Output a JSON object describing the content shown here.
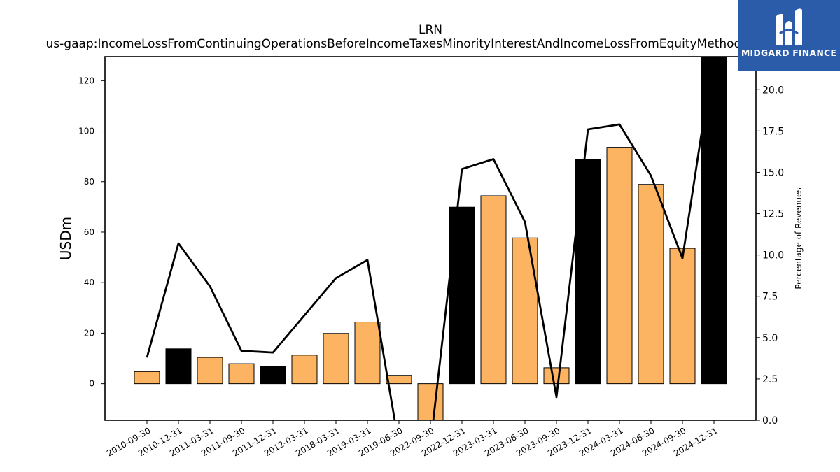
{
  "chart_data": {
    "type": "bar",
    "title": "LRN",
    "subtitle": "us-gaap:IncomeLossFromContinuingOperationsBeforeIncomeTaxesMinorityInterestAndIncomeLossFromEquityMethodInvestments",
    "ylabel": "USDm",
    "y2label": "Percentage of Revenues",
    "categories": [
      "2010-09-30",
      "2010-12-31",
      "2011-03-31",
      "2011-09-30",
      "2011-12-31",
      "2012-03-31",
      "2018-03-31",
      "2019-03-31",
      "2019-06-30",
      "2022-09-30",
      "2022-12-31",
      "2023-03-31",
      "2023-06-30",
      "2023-09-30",
      "2023-12-31",
      "2024-03-31",
      "2024-06-30",
      "2024-09-30",
      "2024-12-31"
    ],
    "series": [
      {
        "type": "bar",
        "axis": "left",
        "values": [
          4.8,
          13.8,
          10.4,
          7.9,
          6.8,
          11.3,
          19.9,
          24.4,
          3.3,
          -16.0,
          69.9,
          74.4,
          57.7,
          6.3,
          88.8,
          93.6,
          78.9,
          53.6,
          131.0
        ],
        "colors": [
          "#fdb462",
          "#000000",
          "#fdb462",
          "#fdb462",
          "#000000",
          "#fdb462",
          "#fdb462",
          "#fdb462",
          "#fdb462",
          "#fdb462",
          "#000000",
          "#fdb462",
          "#fdb462",
          "#fdb462",
          "#000000",
          "#fdb462",
          "#fdb462",
          "#fdb462",
          "#000000"
        ]
      },
      {
        "type": "line",
        "axis": "right",
        "color": "#000000",
        "values": [
          3.8,
          10.7,
          8.1,
          4.2,
          4.1,
          null,
          8.6,
          9.7,
          -1.5,
          -1.5,
          15.2,
          15.8,
          12.0,
          1.4,
          17.6,
          17.9,
          14.8,
          9.8,
          22.3
        ]
      }
    ],
    "ylim": [
      -14.5,
      129.5
    ],
    "y2lim": [
      0.0,
      22.0
    ],
    "yticks": [
      "0",
      "20",
      "40",
      "60",
      "80",
      "100",
      "120"
    ],
    "y2ticks": [
      "0.0",
      "2.5",
      "5.0",
      "7.5",
      "10.0",
      "12.5",
      "15.0",
      "17.5",
      "20.0"
    ],
    "grid": false,
    "legend": "none"
  },
  "logo": {
    "text": "MIDGARD FINANCE",
    "background": "#2a5caa"
  }
}
